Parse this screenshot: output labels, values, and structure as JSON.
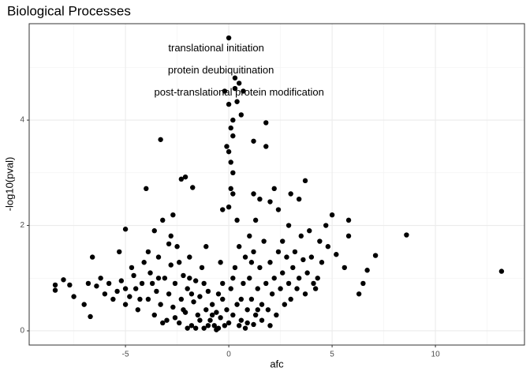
{
  "chart_data": {
    "type": "scatter",
    "title": "Biological Processes",
    "x_label": "afc",
    "y_label": "-log10(pval)",
    "color": "#000000",
    "grid": true,
    "xlim": [
      -9.66,
      14.31
    ],
    "ylim": [
      -0.27,
      5.83
    ],
    "xticks": [
      -5,
      0,
      5,
      10
    ],
    "yticks": [
      0,
      2,
      4
    ],
    "annotations": [
      {
        "text": "translational initiation",
        "x": -0.61,
        "y": 5.36
      },
      {
        "text": "protein deubiquitination",
        "x": -0.38,
        "y": 4.94
      },
      {
        "text": "post-translational protein modification",
        "x": 0.5,
        "y": 4.52
      }
    ],
    "x": [
      -8.4,
      -8.4,
      -8.0,
      -7.7,
      -7.5,
      -7.0,
      -6.8,
      -6.7,
      -6.6,
      -6.2,
      -5.8,
      -5.3,
      -5.0,
      -4.7,
      -4.5,
      -4.0,
      -3.9,
      -3.6,
      -3.3,
      -3.2,
      -2.9,
      -2.7,
      -2.3,
      -2.1,
      -1.75,
      -1.9,
      -6.4,
      -6.0,
      -5.6,
      -5.4,
      -5.2,
      -5.0,
      -4.8,
      -4.6,
      -4.4,
      -4.2,
      -4.1,
      -3.9,
      -3.8,
      -3.6,
      -3.5,
      -3.4,
      -3.3,
      -3.1,
      -3.0,
      -2.9,
      -2.8,
      -2.7,
      -2.6,
      -2.5,
      -2.4,
      -2.3,
      -2.2,
      -2.1,
      -2.0,
      -1.9,
      -1.8,
      -1.7,
      -1.6,
      -1.5,
      -1.4,
      -1.3,
      -1.2,
      -1.1,
      -1.0,
      -0.9,
      -0.8,
      -0.7,
      -0.6,
      -0.5,
      -0.4,
      -0.3,
      -0.2,
      -0.1,
      0.0,
      0.1,
      0.2,
      0.3,
      0.4,
      0.5,
      0.6,
      0.7,
      0.8,
      0.9,
      1.0,
      1.1,
      1.2,
      1.3,
      1.4,
      1.5,
      1.6,
      1.7,
      1.8,
      1.9,
      2.0,
      2.1,
      2.2,
      2.3,
      2.4,
      2.5,
      2.6,
      2.7,
      2.8,
      2.9,
      3.0,
      3.1,
      3.2,
      3.3,
      3.4,
      3.6,
      3.7,
      3.8,
      4.0,
      4.1,
      4.3,
      4.2,
      4.5,
      4.8,
      4.7,
      5.0,
      5.2,
      5.6,
      5.8,
      5.8,
      6.3,
      6.5,
      6.7,
      7.1,
      8.6,
      13.2,
      3.7,
      3.4,
      3.0,
      2.2,
      1.8,
      1.8,
      1.2,
      0.7,
      0.5,
      0.3,
      0.4,
      0.2,
      0.1,
      -0.1,
      0.1,
      0.2,
      0.1,
      0.0,
      0.2,
      1.2,
      1.5,
      2.0,
      2.4,
      1.3,
      0.4,
      -0.3,
      1.0,
      0.0,
      0.3,
      0.6,
      -0.2,
      0.0,
      0.2,
      0.0,
      -1.6,
      -1.0,
      -0.6,
      0.8,
      1.2,
      -2.0,
      -2.6,
      -3.2,
      -1.4,
      -0.8,
      0.5,
      0.9,
      1.6,
      2.0,
      -0.3,
      0.6,
      -1.2,
      -2.4,
      -3.4,
      2.6,
      1.1,
      0.2,
      -0.5,
      -1.8,
      -2.2,
      1.4,
      -4.3,
      -5.0,
      -3.7,
      3.9,
      4.4,
      2.9,
      3.5,
      -0.4,
      -1.1,
      -2.8
    ],
    "values": [
      0.87,
      0.77,
      0.97,
      0.87,
      0.65,
      0.5,
      0.9,
      0.27,
      1.4,
      1.0,
      0.9,
      1.5,
      1.93,
      1.2,
      0.8,
      2.7,
      1.5,
      1.9,
      3.63,
      2.1,
      1.65,
      2.2,
      2.88,
      2.92,
      2.72,
      1.0,
      0.85,
      0.7,
      0.6,
      0.75,
      0.95,
      0.5,
      0.65,
      1.05,
      0.4,
      0.9,
      1.3,
      0.6,
      1.1,
      0.3,
      0.75,
      1.4,
      0.5,
      1.0,
      0.2,
      0.7,
      1.25,
      0.45,
      0.9,
      1.6,
      0.15,
      0.6,
      1.05,
      0.35,
      0.8,
      1.4,
      0.1,
      0.55,
      0.95,
      0.3,
      0.65,
      1.2,
      0.05,
      0.4,
      0.75,
      0.2,
      0.5,
      0.1,
      0.35,
      0.05,
      0.25,
      0.6,
      0.1,
      0.4,
      0.15,
      0.8,
      0.3,
      1.2,
      0.5,
      1.6,
      0.2,
      0.9,
      1.4,
      0.4,
      1.0,
      0.6,
      1.5,
      0.3,
      0.8,
      1.2,
      0.5,
      1.7,
      0.9,
      0.4,
      1.3,
      0.7,
      1.0,
      0.3,
      1.5,
      0.8,
      1.1,
      0.5,
      1.4,
      0.9,
      0.6,
      1.2,
      1.5,
      0.8,
      1.0,
      1.35,
      0.7,
      1.1,
      1.4,
      0.9,
      1.0,
      0.8,
      1.3,
      1.6,
      2.0,
      2.2,
      1.45,
      1.2,
      1.8,
      2.1,
      0.7,
      0.9,
      1.15,
      1.43,
      1.82,
      1.13,
      2.85,
      2.5,
      2.6,
      2.7,
      3.95,
      3.5,
      3.6,
      4.55,
      4.7,
      4.8,
      4.35,
      4.0,
      3.85,
      3.5,
      3.2,
      3.0,
      2.7,
      2.35,
      2.6,
      2.6,
      2.5,
      2.45,
      2.3,
      2.1,
      2.1,
      2.3,
      1.8,
      5.56,
      4.6,
      4.1,
      4.55,
      4.3,
      3.7,
      3.4,
      0.05,
      0.1,
      0.02,
      0.05,
      0.12,
      0.05,
      0.25,
      0.15,
      0.2,
      0.3,
      0.1,
      0.15,
      0.2,
      0.1,
      0.9,
      0.6,
      0.9,
      1.3,
      1.0,
      1.7,
      1.3,
      1.0,
      0.7,
      0.7,
      0.4,
      0.4,
      0.6,
      0.8,
      0.9,
      1.9,
      1.7,
      2.0,
      1.8,
      1.3,
      1.6,
      1.8
    ]
  }
}
